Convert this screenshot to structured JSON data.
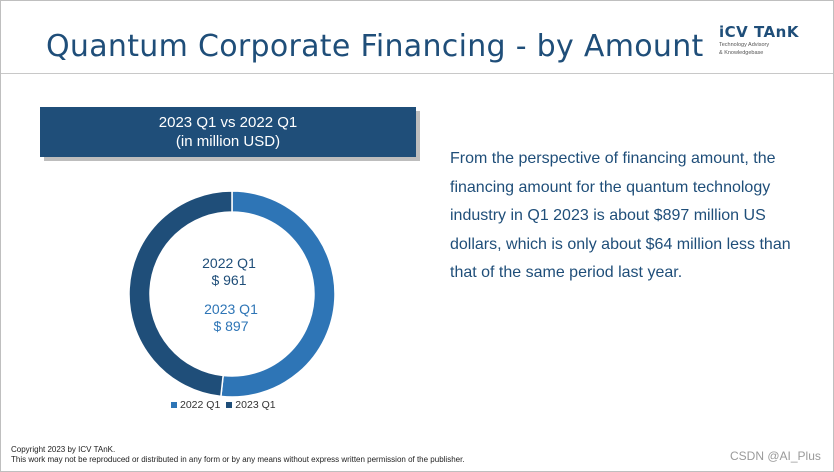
{
  "slide": {
    "title": "Quantum Corporate Financing - by Amount",
    "logo": {
      "main": "iCV TAnK",
      "sub_line1": "Technology Advisory",
      "sub_line2": "& Knowledgebase"
    },
    "banner": {
      "line1": "2023 Q1 vs 2022 Q1",
      "line2": "(in million USD)"
    },
    "center_labels": {
      "q2022_name": "2022 Q1",
      "q2022_value": "$ 961",
      "q2023_name": "2023 Q1",
      "q2023_value": "$ 897"
    },
    "paragraph": "From the perspective of financing amount, the financing amount for the quantum technology industry in Q1 2023 is about $897 million US dollars, which is only about $64 million less than that of the same period last year.",
    "footer": {
      "line1": "Copyright  2023 by ICV TAnK.",
      "line2": "This work may not be reproduced or distributed in any form or by any means without express written permission of the publisher."
    },
    "watermark": "CSDN @AI_Plus"
  },
  "colors": {
    "dark_blue": "#1f4e79",
    "mid_blue": "#2e75b6"
  },
  "chart_data": {
    "type": "pie",
    "donut": true,
    "title": "2023 Q1 vs 2022 Q1 (in million USD)",
    "categories": [
      "2022 Q1",
      "2023 Q1"
    ],
    "values": [
      961,
      897
    ],
    "colors": [
      "#2e75b6",
      "#1f4e79"
    ],
    "legend": {
      "position": "bottom",
      "entries": [
        "2022 Q1",
        "2023 Q1"
      ]
    }
  }
}
